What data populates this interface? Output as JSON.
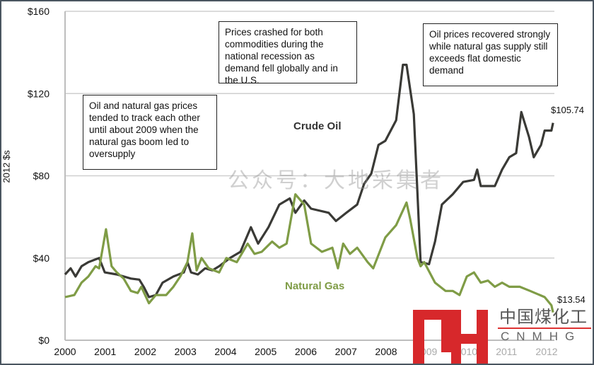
{
  "chart_data": {
    "type": "line",
    "title": "",
    "xlabel": "",
    "ylabel": "2012 $s",
    "xlim": [
      2000,
      2012.2
    ],
    "ylim": [
      0,
      160
    ],
    "x_ticks": [
      "2000",
      "2001",
      "2002",
      "2003",
      "2004",
      "2005",
      "2006",
      "2007",
      "2008",
      "2009",
      "2010",
      "2011",
      "2012"
    ],
    "y_ticks": [
      "$0",
      "$40",
      "$80",
      "$120",
      "$160"
    ],
    "y_tick_values": [
      0,
      40,
      80,
      120,
      160
    ],
    "grid": "horizontal",
    "series": [
      {
        "name": "Crude Oil",
        "color": "#3a3a36",
        "end_label": "$105.74",
        "x": [
          2000.0,
          2000.14,
          2000.26,
          2000.41,
          2000.58,
          2000.85,
          2000.99,
          2001.29,
          2001.64,
          2001.85,
          2001.96,
          2002.09,
          2002.26,
          2002.43,
          2002.7,
          2002.96,
          2003.05,
          2003.14,
          2003.31,
          2003.49,
          2003.67,
          2003.84,
          2004.11,
          2004.37,
          2004.63,
          2004.81,
          2005.07,
          2005.34,
          2005.6,
          2005.74,
          2005.96,
          2006.13,
          2006.57,
          2006.75,
          2007.01,
          2007.28,
          2007.45,
          2007.63,
          2007.81,
          2007.98,
          2008.25,
          2008.42,
          2008.51,
          2008.69,
          2008.86,
          2009.07,
          2009.22,
          2009.39,
          2009.66,
          2009.92,
          2010.19,
          2010.27,
          2010.36,
          2010.71,
          2010.89,
          2011.07,
          2011.24,
          2011.37,
          2011.56,
          2011.68,
          2011.86,
          2011.95,
          2012.12,
          2012.16
        ],
        "y": [
          32,
          35,
          31,
          36,
          38,
          40,
          33,
          32,
          30,
          29.5,
          26,
          21,
          22,
          28,
          31,
          33,
          38,
          33,
          32,
          35,
          34,
          36,
          40,
          43,
          55,
          47,
          55,
          66,
          69,
          62,
          68,
          64,
          62,
          58,
          62,
          66,
          76,
          81,
          95,
          97,
          107,
          134,
          134,
          110,
          38,
          37,
          48,
          66,
          71,
          77,
          78,
          83,
          75,
          75,
          83,
          89,
          91,
          111,
          99,
          89,
          95,
          102,
          102,
          105.74
        ]
      },
      {
        "name": "Natural Gas",
        "color": "#7f9c46",
        "end_label": "$13.54",
        "x": [
          2000.0,
          2000.23,
          2000.41,
          2000.58,
          2000.76,
          2000.85,
          2001.02,
          2001.16,
          2001.29,
          2001.46,
          2001.64,
          2001.81,
          2001.9,
          2002.09,
          2002.26,
          2002.52,
          2002.7,
          2002.87,
          2003.05,
          2003.17,
          2003.28,
          2003.4,
          2003.58,
          2003.84,
          2004.02,
          2004.28,
          2004.55,
          2004.72,
          2004.9,
          2005.16,
          2005.34,
          2005.52,
          2005.74,
          2005.96,
          2006.13,
          2006.4,
          2006.66,
          2006.8,
          2006.93,
          2007.1,
          2007.28,
          2007.54,
          2007.68,
          2007.98,
          2008.25,
          2008.51,
          2008.6,
          2008.78,
          2008.86,
          2008.95,
          2009.22,
          2009.48,
          2009.66,
          2009.83,
          2010.01,
          2010.19,
          2010.36,
          2010.54,
          2010.71,
          2010.89,
          2011.07,
          2011.33,
          2011.59,
          2011.95,
          2012.12,
          2012.16
        ],
        "y": [
          21,
          22,
          28,
          31,
          36,
          35,
          54,
          36,
          33,
          30,
          24,
          23,
          26,
          18,
          22,
          22,
          26,
          31,
          38,
          52,
          34,
          40,
          35,
          33,
          40,
          38,
          47,
          42,
          43,
          48,
          45,
          47,
          71,
          66,
          47,
          43,
          45,
          35,
          47,
          42,
          45,
          38,
          35,
          50,
          56,
          67,
          59,
          40,
          36,
          38,
          28,
          24,
          24,
          22,
          31,
          33,
          28,
          29,
          26,
          28,
          26,
          26,
          24,
          21,
          17,
          13.54
        ]
      }
    ]
  },
  "series_labels": {
    "crude": "Crude Oil",
    "gas": "Natural Gas"
  },
  "annotations": [
    "Oil and natural gas prices tended to track each other until about 2009 when the natural gas boom led to oversupply",
    "Prices crashed for both commodities during the national recession as demand fell globally and in the U.S.",
    "Oil prices recovered strongly while natural gas supply still exceeds flat domestic demand"
  ],
  "watermark": "公众号：大地采集者",
  "logo": {
    "mark": "MH",
    "chinese": "中国煤化工",
    "english": "CNMHG",
    "color": "#d7282b"
  }
}
